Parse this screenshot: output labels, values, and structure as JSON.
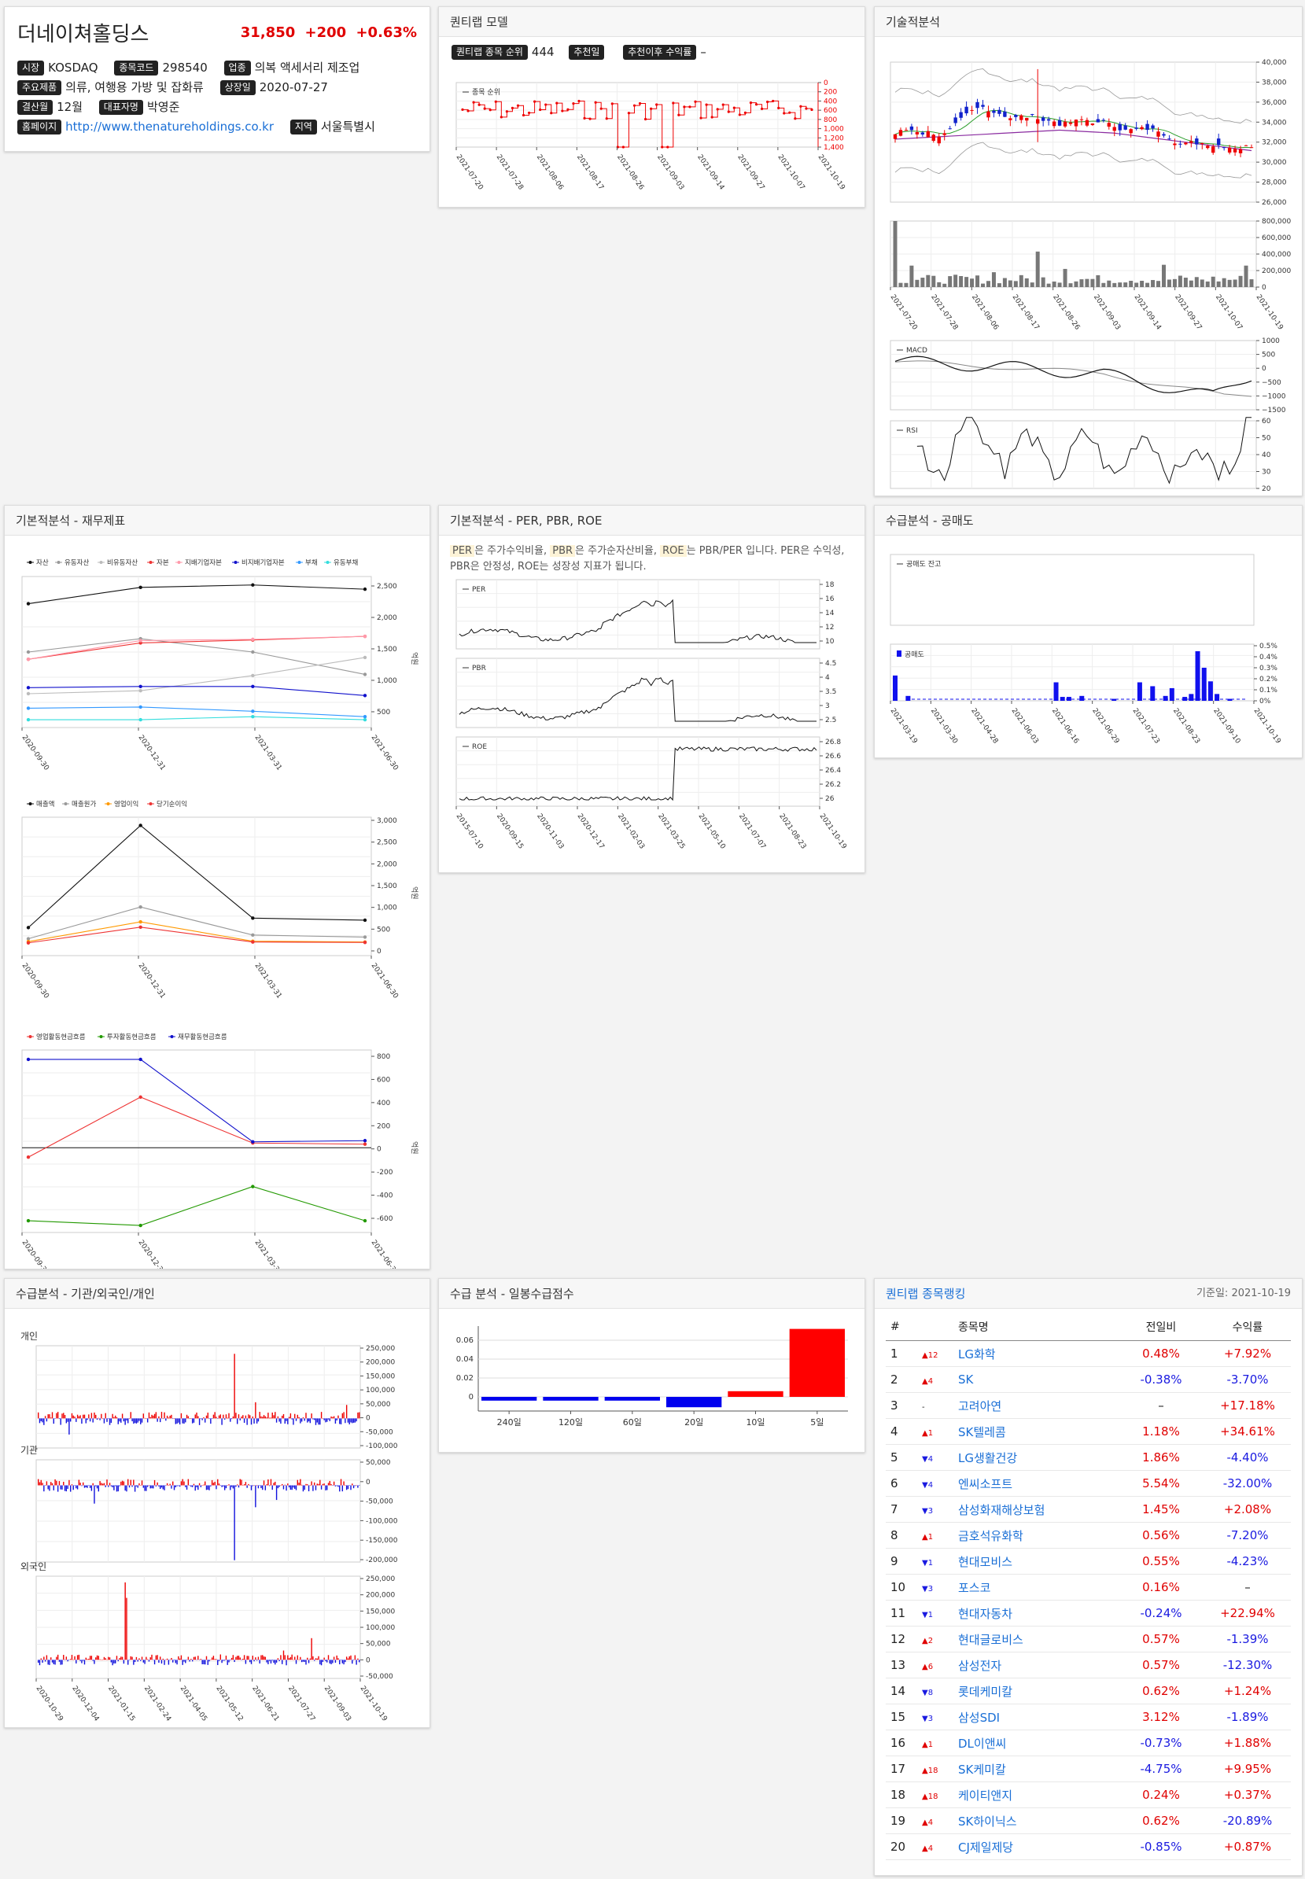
{
  "stock": {
    "name": "더네이쳐홀딩스",
    "price": "31,850",
    "change": "+200",
    "change_pct": "+0.63%",
    "market_label": "시장",
    "market": "KOSDAQ",
    "code_label": "종목코드",
    "code": "298540",
    "industry_label": "업종",
    "industry": "의복 액세서리 제조업",
    "products_label": "주요제품",
    "products": "의류, 여행용 가방 및 잡화류",
    "listed_label": "상장일",
    "listed": "2020-07-27",
    "fiscal_label": "결산월",
    "fiscal": "12월",
    "ceo_label": "대표자명",
    "ceo": "박영준",
    "homepage_label": "홈페이지",
    "homepage": "http://www.thenatureholdings.co.kr",
    "region_label": "지역",
    "region": "서울특별시"
  },
  "quantilab_model": {
    "title": "퀀티랩 모델",
    "rank_label": "퀀티랩 종목 순위",
    "rank": "444",
    "rec_date_label": "추천일",
    "rec_date": "",
    "rec_return_label": "추천이후 수익률",
    "rec_return": "–",
    "legend": "종목 순위",
    "y_ticks": [
      "0",
      "200",
      "400",
      "600",
      "800",
      "1,000",
      "1,200",
      "1,400"
    ],
    "x_ticks": [
      "2021-07-20",
      "2021-07-28",
      "2021-08-06",
      "2021-08-17",
      "2021-08-26",
      "2021-09-03",
      "2021-09-14",
      "2021-09-27",
      "2021-10-07",
      "2021-10-19"
    ]
  },
  "technical": {
    "title": "기술적분석",
    "price_ticks": [
      "40,000",
      "38,000",
      "36,000",
      "34,000",
      "32,000",
      "30,000",
      "28,000",
      "26,000"
    ],
    "volume_ticks": [
      "800,000",
      "600,000",
      "400,000",
      "200,000",
      "0"
    ],
    "x_ticks": [
      "2021-07-20",
      "2021-07-28",
      "2021-08-06",
      "2021-08-17",
      "2021-08-26",
      "2021-09-03",
      "2021-09-14",
      "2021-09-27",
      "2021-10-07",
      "2021-10-19"
    ],
    "macd_legend": "MACD",
    "macd_ticks": [
      "1000",
      "500",
      "0",
      "−500",
      "−1000",
      "−1500"
    ],
    "rsi_legend": "RSI",
    "rsi_ticks": [
      "60",
      "50",
      "40",
      "30",
      "20"
    ]
  },
  "fundamental": {
    "title": "기본적분석 - 재무제표",
    "unit": "억원",
    "bs_legend": [
      "자산",
      "유동자산",
      "비유동자산",
      "자본",
      "지배기업자본",
      "비지배기업자본",
      "부채",
      "유동부채"
    ],
    "bs_ticks": [
      "2,500",
      "2,000",
      "1,500",
      "1,000",
      "500"
    ],
    "is_legend": [
      "매출액",
      "매출원가",
      "영업이익",
      "당기순이익"
    ],
    "is_ticks": [
      "3,000",
      "2,500",
      "2,000",
      "1,500",
      "1,000",
      "500",
      "0"
    ],
    "cf_legend": [
      "영업활동현금흐름",
      "투자활동현금흐름",
      "재무활동현금흐름"
    ],
    "cf_ticks": [
      "800",
      "600",
      "400",
      "200",
      "0",
      "-200",
      "-400",
      "-600"
    ],
    "x_ticks": [
      "2020-09-30",
      "2020-12-31",
      "2021-03-31",
      "2021-06-30"
    ]
  },
  "valuation": {
    "title": "기본적분석 - PER, PBR, ROE",
    "desc_per": "PER",
    "desc_1": "은 주가수익비율,",
    "desc_pbr": "PBR",
    "desc_2": "은 주가순자산비율,",
    "desc_roe": "ROE",
    "desc_3": "는 PBR/PER 입니다. PER은 수익성, PBR은 안정성, ROE는 성장성 지표가 됩니다.",
    "per_legend": "PER",
    "per_ticks": [
      "18",
      "16",
      "14",
      "12",
      "10"
    ],
    "pbr_legend": "PBR",
    "pbr_ticks": [
      "4.5",
      "4",
      "3.5",
      "3",
      "2.5"
    ],
    "roe_legend": "ROE",
    "roe_ticks": [
      "26.8",
      "26.6",
      "26.4",
      "26.2",
      "26"
    ],
    "x_ticks": [
      "2015-07-10",
      "2020-09-15",
      "2020-11-03",
      "2020-12-17",
      "2021-02-03",
      "2021-03-25",
      "2021-05-10",
      "2021-07-07",
      "2021-08-23",
      "2021-10-19"
    ]
  },
  "short_selling": {
    "title": "수급분석 - 공매도",
    "balance_legend": "공매도 잔고",
    "volume_legend": "공매도",
    "y_ticks": [
      "0.5%",
      "0.4%",
      "0.3%",
      "0.2%",
      "0.1%",
      "0%"
    ],
    "x_ticks": [
      "2021-03-19",
      "2021-03-30",
      "2021-04-28",
      "2021-06-03",
      "2021-06-16",
      "2021-06-29",
      "2021-07-23",
      "2021-08-23",
      "2021-09-10",
      "2021-10-19"
    ]
  },
  "investors": {
    "title": "수급분석 - 기관/외국인/개인",
    "individual_label": "개인",
    "individual_ticks": [
      "250,000",
      "200,000",
      "150,000",
      "100,000",
      "50,000",
      "0",
      "-50,000",
      "-100,000"
    ],
    "institution_label": "기관",
    "institution_ticks": [
      "50,000",
      "0",
      "-50,000",
      "-100,000",
      "-150,000",
      "-200,000"
    ],
    "foreign_label": "외국인",
    "foreign_ticks": [
      "250,000",
      "200,000",
      "150,000",
      "100,000",
      "50,000",
      "0",
      "-50,000"
    ],
    "x_ticks": [
      "2020-10-29",
      "2020-12-04",
      "2021-01-15",
      "2021-02-24",
      "2021-04-05",
      "2021-05-12",
      "2021-06-21",
      "2021-07-27",
      "2021-09-03",
      "2021-10-19"
    ]
  },
  "daily_supply": {
    "title": "수급 분석 - 일봉수급점수",
    "chart_data": {
      "type": "bar",
      "categories": [
        "240일",
        "120일",
        "60일",
        "20일",
        "10일",
        "5일"
      ],
      "values": [
        -0.004,
        -0.004,
        -0.004,
        -0.011,
        0.006,
        0.072
      ],
      "ylim": [
        -0.015,
        0.075
      ],
      "y_ticks": [
        "0.06",
        "0.04",
        "0.02",
        "0"
      ],
      "colors": {
        "positive": "#ff0000",
        "negative": "#0000ee"
      }
    }
  },
  "ranking": {
    "title": "퀀티랩 종목랭킹",
    "date_label": "기준일: 2021-10-19",
    "headers": [
      "#",
      "",
      "종목명",
      "전일비",
      "수익률"
    ],
    "rows": [
      {
        "n": "1",
        "dir": "up",
        "mv": "12",
        "name": "LG화학",
        "chg": "0.48%",
        "ret": "+7.92%"
      },
      {
        "n": "2",
        "dir": "up",
        "mv": "4",
        "name": "SK",
        "chg": "-0.38%",
        "ret": "-3.70%"
      },
      {
        "n": "3",
        "dir": "none",
        "mv": "-",
        "name": "고려아연",
        "chg": "–",
        "ret": "+17.18%"
      },
      {
        "n": "4",
        "dir": "up",
        "mv": "1",
        "name": "SK텔레콤",
        "chg": "1.18%",
        "ret": "+34.61%"
      },
      {
        "n": "5",
        "dir": "down",
        "mv": "4",
        "name": "LG생활건강",
        "chg": "1.86%",
        "ret": "-4.40%"
      },
      {
        "n": "6",
        "dir": "down",
        "mv": "4",
        "name": "엔씨소프트",
        "chg": "5.54%",
        "ret": "-32.00%"
      },
      {
        "n": "7",
        "dir": "down",
        "mv": "3",
        "name": "삼성화재해상보험",
        "chg": "1.45%",
        "ret": "+2.08%"
      },
      {
        "n": "8",
        "dir": "up",
        "mv": "1",
        "name": "금호석유화학",
        "chg": "0.56%",
        "ret": "-7.20%"
      },
      {
        "n": "9",
        "dir": "down",
        "mv": "1",
        "name": "현대모비스",
        "chg": "0.55%",
        "ret": "-4.23%"
      },
      {
        "n": "10",
        "dir": "down",
        "mv": "3",
        "name": "포스코",
        "chg": "0.16%",
        "ret": "–"
      },
      {
        "n": "11",
        "dir": "down",
        "mv": "1",
        "name": "현대자동차",
        "chg": "-0.24%",
        "ret": "+22.94%"
      },
      {
        "n": "12",
        "dir": "up",
        "mv": "2",
        "name": "현대글로비스",
        "chg": "0.57%",
        "ret": "-1.39%"
      },
      {
        "n": "13",
        "dir": "up",
        "mv": "6",
        "name": "삼성전자",
        "chg": "0.57%",
        "ret": "-12.30%"
      },
      {
        "n": "14",
        "dir": "down",
        "mv": "8",
        "name": "롯데케미칼",
        "chg": "0.62%",
        "ret": "+1.24%"
      },
      {
        "n": "15",
        "dir": "down",
        "mv": "3",
        "name": "삼성SDI",
        "chg": "3.12%",
        "ret": "-1.89%"
      },
      {
        "n": "16",
        "dir": "up",
        "mv": "1",
        "name": "DL이앤씨",
        "chg": "-0.73%",
        "ret": "+1.88%"
      },
      {
        "n": "17",
        "dir": "up",
        "mv": "18",
        "name": "SK케미칼",
        "chg": "-4.75%",
        "ret": "+9.95%"
      },
      {
        "n": "18",
        "dir": "up",
        "mv": "18",
        "name": "케이티앤지",
        "chg": "0.24%",
        "ret": "+0.37%"
      },
      {
        "n": "19",
        "dir": "up",
        "mv": "4",
        "name": "SK하이닉스",
        "chg": "0.62%",
        "ret": "-20.89%"
      },
      {
        "n": "20",
        "dir": "up",
        "mv": "4",
        "name": "CJ제일제당",
        "chg": "-0.85%",
        "ret": "+0.87%"
      }
    ]
  }
}
